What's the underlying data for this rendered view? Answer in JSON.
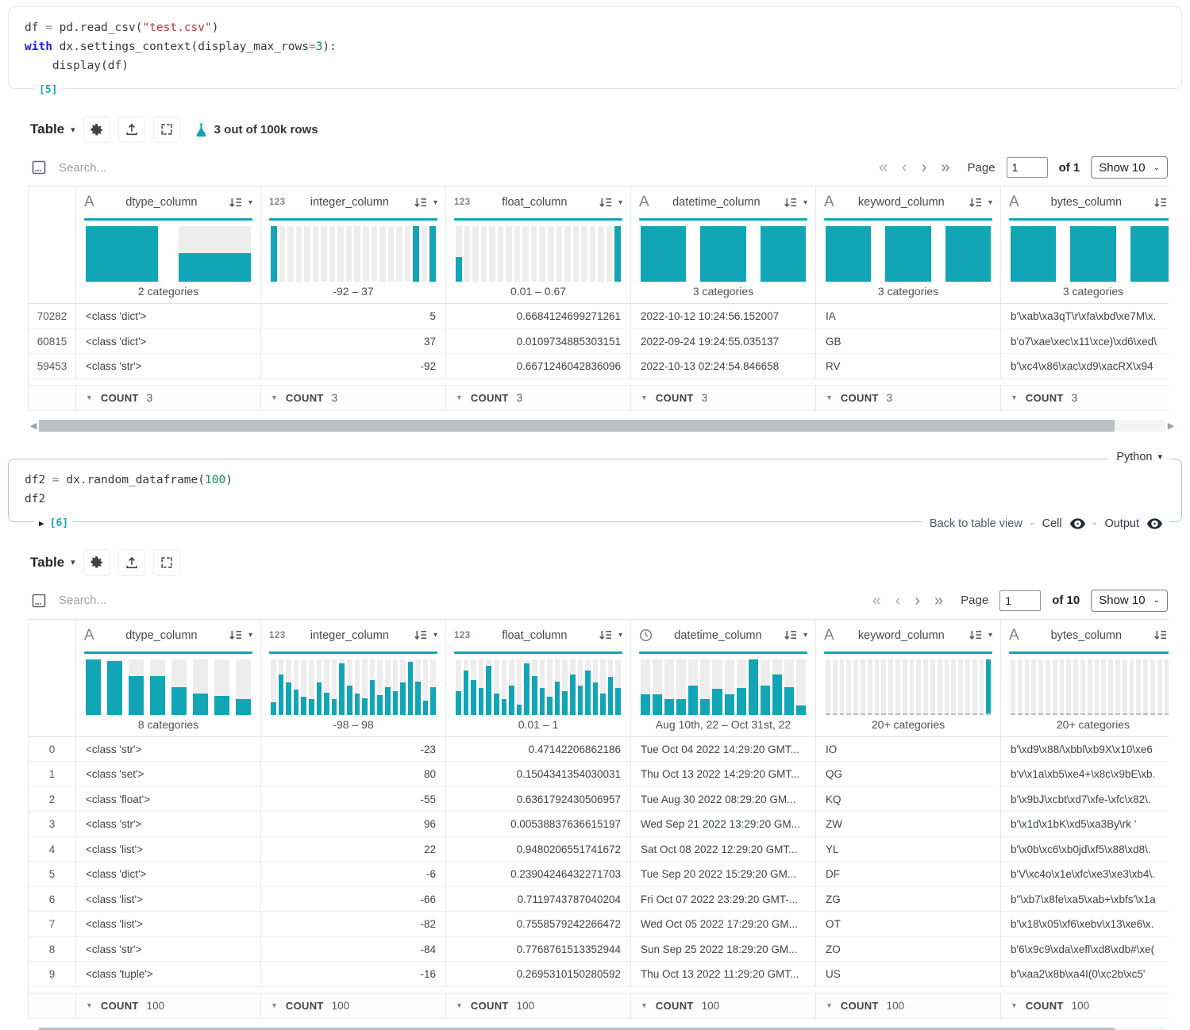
{
  "colors": {
    "accent": "#12a5b5",
    "hist_gray": "#ededee",
    "keyword_blue": "#1d24cc",
    "string_red": "#b23535",
    "number_green": "#0a8a5c"
  },
  "icons": {
    "first": "«",
    "prev": "‹",
    "next": "›",
    "last": "»",
    "caret_down": "▾",
    "count_caret": "▼",
    "play": "▶",
    "scroll_left": "◀",
    "scroll_right": "▶"
  },
  "code_cells": [
    {
      "label": "[5]",
      "lines": [
        [
          {
            "t": "df ",
            "c": "plain"
          },
          {
            "t": "= ",
            "c": "op"
          },
          {
            "t": "pd.read_csv(",
            "c": "plain"
          },
          {
            "t": "\"test.csv\"",
            "c": "str"
          },
          {
            "t": ")",
            "c": "plain"
          }
        ],
        [
          {
            "t": "with ",
            "c": "kw"
          },
          {
            "t": "dx.settings_context(display_max_rows",
            "c": "plain"
          },
          {
            "t": "=",
            "c": "op"
          },
          {
            "t": "3",
            "c": "num"
          },
          {
            "t": "):",
            "c": "plain"
          }
        ],
        [
          {
            "t": "    display(df)",
            "c": "plain"
          }
        ]
      ]
    },
    {
      "label": "[6]",
      "lang": "Python",
      "back_link": "Back to table view",
      "sep": "-",
      "cell_label": "Cell",
      "output_label": "Output",
      "lines": [
        [
          {
            "t": "df2 ",
            "c": "plain"
          },
          {
            "t": "= ",
            "c": "op"
          },
          {
            "t": "dx.random_dataframe(",
            "c": "plain"
          },
          {
            "t": "100",
            "c": "num"
          },
          {
            "t": ")",
            "c": "plain"
          }
        ],
        [
          {
            "t": "df2",
            "c": "plain"
          }
        ]
      ]
    }
  ],
  "tables": [
    {
      "toolbar": {
        "view": "Table",
        "badge": "3 out of 100k rows"
      },
      "search": {
        "placeholder": "Search..."
      },
      "pagination": {
        "label": "Page",
        "page": "1",
        "of": "of 1",
        "show": "Show 10"
      },
      "columns": [
        {
          "name": "dtype_column",
          "icon": "text",
          "summary": "2 categories",
          "teal": [
            1,
            0.52
          ],
          "dashed": false
        },
        {
          "name": "integer_column",
          "icon": "num",
          "summary": "-92 – 37",
          "teal": [
            1,
            0,
            0,
            0,
            0,
            0,
            0,
            0,
            0,
            0,
            0,
            0,
            0,
            0,
            0,
            0,
            0,
            1,
            0,
            1
          ],
          "dashed": false
        },
        {
          "name": "float_column",
          "icon": "num",
          "summary": "0.01 – 0.67",
          "teal": [
            0.45,
            0,
            0,
            0,
            0,
            0,
            0,
            0,
            0,
            0,
            0,
            0,
            0,
            0,
            0,
            0,
            0,
            0,
            0,
            1
          ],
          "dashed": false
        },
        {
          "name": "datetime_column",
          "icon": "text",
          "summary": "3 categories",
          "teal": [
            1,
            1,
            1
          ],
          "dashed": false
        },
        {
          "name": "keyword_column",
          "icon": "text",
          "summary": "3 categories",
          "teal": [
            1,
            1,
            1
          ],
          "dashed": false
        },
        {
          "name": "bytes_column",
          "icon": "text",
          "summary": "3 categories",
          "teal": [
            1,
            1,
            1
          ],
          "dashed": false
        }
      ],
      "rows": [
        [
          "70282",
          "<class 'dict'>",
          "5",
          "0.6684124699271261",
          "2022-10-12 10:24:56.152007",
          "IA",
          "b'\\xab\\xa3qT\\r\\xfa\\xbd\\xe7M\\x."
        ],
        [
          "60815",
          "<class 'dict'>",
          "37",
          "0.0109734885303151",
          "2022-09-24 19:24:55.035137",
          "GB",
          "b'o7\\xae\\xec\\x11\\xce)\\xd6\\xed\\"
        ],
        [
          "59453",
          "<class 'str'>",
          "-92",
          "0.6671246042836096",
          "2022-10-13 02:24:54.846658",
          "RV",
          "b'\\xc4\\x86\\xac\\xd9\\xacRX\\x94"
        ]
      ],
      "summary": {
        "label": "COUNT",
        "value": "3"
      }
    },
    {
      "toolbar": {
        "view": "Table",
        "badge": ""
      },
      "search": {
        "placeholder": "Search..."
      },
      "pagination": {
        "label": "Page",
        "page": "1",
        "of": "of 10",
        "show": "Show 10"
      },
      "columns": [
        {
          "name": "dtype_column",
          "icon": "text",
          "summary": "8 categories",
          "teal": [
            1,
            0.96,
            0.7,
            0.7,
            0.5,
            0.38,
            0.34,
            0.28
          ],
          "dashed": false
        },
        {
          "name": "integer_column",
          "icon": "num",
          "summary": "-98 – 98",
          "teal": [
            0.22,
            0.72,
            0.58,
            0.45,
            0.32,
            0.28,
            0.58,
            0.4,
            0.28,
            0.92,
            0.52,
            0.38,
            0.3,
            0.62,
            0.35,
            0.5,
            0.42,
            0.58,
            0.95,
            0.6,
            0.25,
            0.5
          ],
          "dashed": false
        },
        {
          "name": "float_column",
          "icon": "num",
          "summary": "0.01 – 1",
          "teal": [
            0.42,
            0.8,
            0.62,
            0.48,
            0.88,
            0.38,
            0.28,
            0.52,
            0.18,
            0.92,
            0.7,
            0.48,
            0.32,
            0.6,
            0.42,
            0.72,
            0.52,
            0.8,
            0.58,
            0.38,
            0.68,
            0.48
          ],
          "dashed": false
        },
        {
          "name": "datetime_column",
          "icon": "clock",
          "summary": "Aug 10th, 22 – Oct 31st, 22",
          "teal": [
            0.36,
            0.36,
            0.28,
            0.28,
            0.52,
            0.28,
            0.46,
            0.36,
            0.48,
            1,
            0.52,
            0.72,
            0.5,
            0.16
          ],
          "dashed": false
        },
        {
          "name": "keyword_column",
          "icon": "text",
          "summary": "20+ categories",
          "teal": [
            0,
            0,
            0,
            0,
            0,
            0,
            0,
            0,
            0,
            0,
            0,
            0,
            0,
            0,
            0,
            0,
            0,
            0,
            0,
            0,
            0,
            0,
            0,
            1
          ],
          "dashed": true
        },
        {
          "name": "bytes_column",
          "icon": "text",
          "summary": "20+ categories",
          "teal": [
            0,
            0,
            0,
            0,
            0,
            0,
            0,
            0,
            0,
            0,
            0,
            0,
            0,
            0,
            0,
            0,
            0,
            0,
            0,
            0,
            0,
            0,
            0,
            1
          ],
          "dashed": true
        }
      ],
      "rows": [
        [
          "0",
          "<class 'str'>",
          "-23",
          "0.47142206862186",
          "Tue Oct 04 2022 14:29:20 GMT...",
          "IO",
          "b'\\xd9\\x88/\\xbbl\\xb9X\\x10\\xe6"
        ],
        [
          "1",
          "<class 'set'>",
          "80",
          "0.1504341354030031",
          "Thu Oct 13 2022 14:29:20 GMT...",
          "QG",
          "b'v\\x1a\\xb5\\xe4+\\x8c\\x9bE\\xb."
        ],
        [
          "2",
          "<class 'float'>",
          "-55",
          "0.6361792430506957",
          "Tue Aug 30 2022 08:29:20 GM...",
          "KQ",
          "b'\\x9bJ\\xcbt\\xd7\\xfe-\\xfc\\x82\\."
        ],
        [
          "3",
          "<class 'str'>",
          "96",
          "0.00538837636615197",
          "Wed Sep 21 2022 13:29:20 GM...",
          "ZW",
          "b'\\x1d\\x1bK\\xd5\\xa3By\\rk '"
        ],
        [
          "4",
          "<class 'list'>",
          "22",
          "0.9480206551741672",
          "Sat Oct 08 2022 12:29:20 GMT...",
          "YL",
          "b'\\x0b\\xc6\\xb0jd\\xf5\\x88\\xd8\\."
        ],
        [
          "5",
          "<class 'dict'>",
          "-6",
          "0.23904246432271703",
          "Tue Sep 20 2022 15:29:20 GM...",
          "DF",
          "b'V\\xc4o\\x1e\\xfc\\xe3\\xe3\\xb4\\."
        ],
        [
          "6",
          "<class 'list'>",
          "-66",
          "0.7119743787040204",
          "Fri Oct 07 2022 23:29:20 GMT-...",
          "ZG",
          "b\"\\xb7\\x8fe\\xa5\\xab+\\xbfs'\\x1a"
        ],
        [
          "7",
          "<class 'list'>",
          "-82",
          "0.7558579242266472",
          "Wed Oct 05 2022 17:29:20 GM...",
          "OT",
          "b'\\x18\\x05\\xf6\\xebv\\x13\\xe6\\x."
        ],
        [
          "8",
          "<class 'str'>",
          "-84",
          "0.7768761513352944",
          "Sun Sep 25 2022 18:29:20 GM...",
          "ZO",
          "b'6\\x9c9\\xda\\xefl\\xd8\\xdb#\\xe("
        ],
        [
          "9",
          "<class 'tuple'>",
          "-16",
          "0.2695310150280592",
          "Thu Oct 13 2022 11:29:20 GMT...",
          "US",
          "b'\\xaa2\\x8b\\xa4I(0\\xc2b\\xc5'"
        ]
      ],
      "summary": {
        "label": "COUNT",
        "value": "100"
      }
    }
  ]
}
